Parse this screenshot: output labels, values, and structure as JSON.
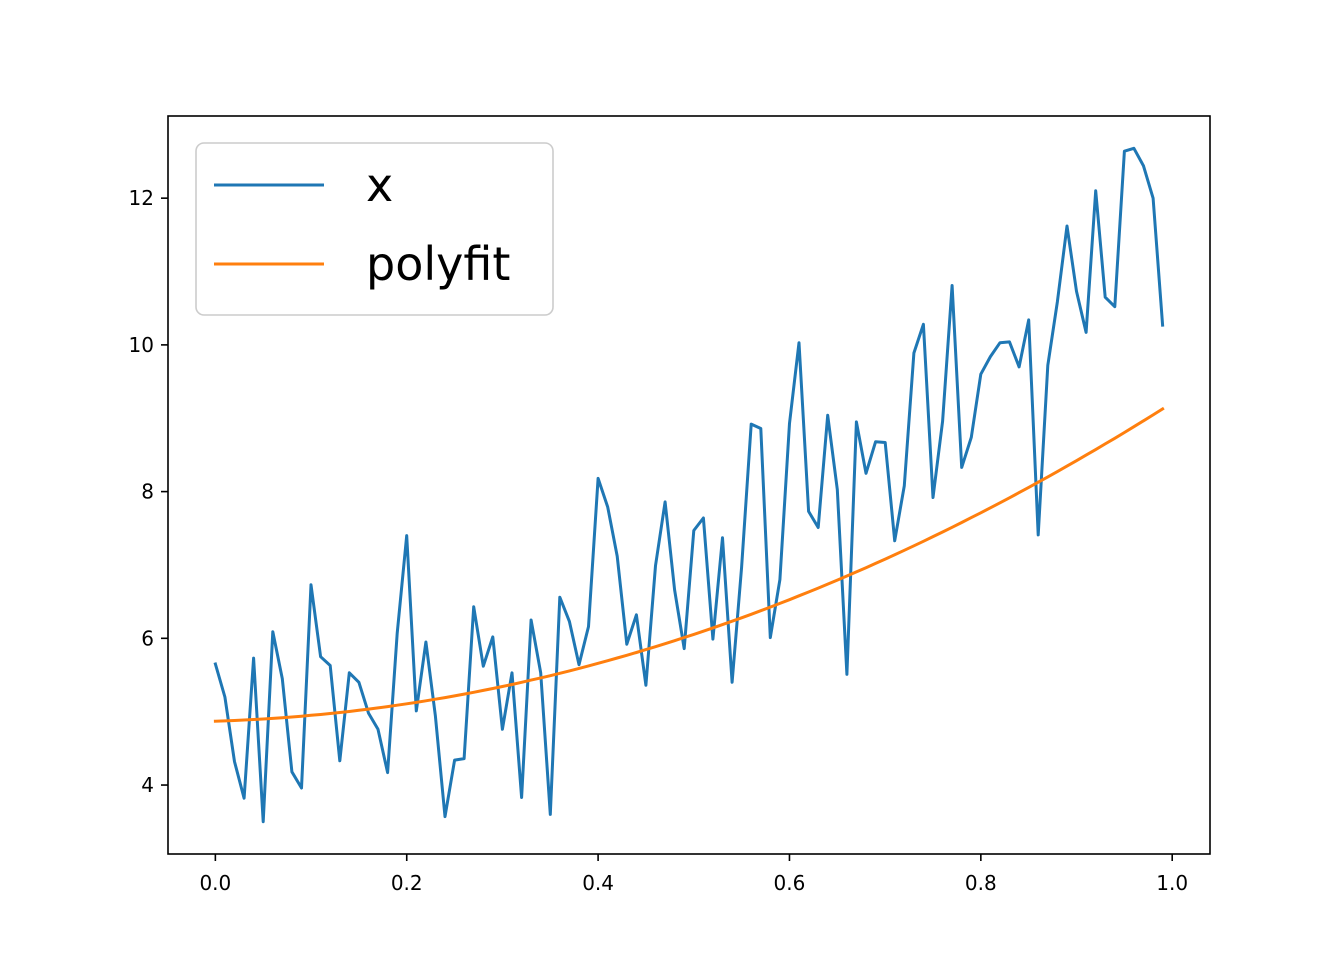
{
  "chart_data": {
    "type": "line",
    "title": "",
    "xlabel": "",
    "ylabel": "",
    "xlim": [
      -0.0495,
      1.0395
    ],
    "ylim": [
      3.06,
      13.12
    ],
    "xticks": [
      0.0,
      0.2,
      0.4,
      0.6,
      0.8,
      1.0
    ],
    "xtick_labels": [
      "0.0",
      "0.2",
      "0.4",
      "0.6",
      "0.8",
      "1.0"
    ],
    "yticks": [
      4,
      6,
      8,
      10,
      12
    ],
    "ytick_labels": [
      "4",
      "6",
      "8",
      "10",
      "12"
    ],
    "grid": false,
    "legend_position": "upper-left",
    "x": [
      0.0,
      0.01,
      0.02,
      0.03,
      0.04,
      0.05,
      0.06,
      0.07,
      0.08,
      0.09,
      0.1,
      0.11,
      0.12,
      0.13,
      0.14,
      0.15,
      0.16,
      0.17,
      0.18,
      0.19,
      0.2,
      0.21,
      0.22,
      0.23,
      0.24,
      0.25,
      0.26,
      0.27,
      0.28,
      0.29,
      0.3,
      0.31,
      0.32,
      0.33,
      0.34,
      0.35,
      0.36,
      0.37,
      0.38,
      0.39,
      0.4,
      0.41,
      0.42,
      0.43,
      0.44,
      0.45,
      0.46,
      0.47,
      0.48,
      0.49,
      0.5,
      0.51,
      0.52,
      0.53,
      0.54,
      0.55,
      0.56,
      0.57,
      0.58,
      0.59,
      0.6,
      0.61,
      0.62,
      0.63,
      0.64,
      0.65,
      0.66,
      0.67,
      0.68,
      0.69,
      0.7,
      0.71,
      0.72,
      0.73,
      0.74,
      0.75,
      0.76,
      0.77,
      0.78,
      0.79,
      0.8,
      0.81,
      0.82,
      0.83,
      0.84,
      0.85,
      0.86,
      0.87,
      0.88,
      0.89,
      0.9,
      0.91,
      0.92,
      0.93,
      0.94,
      0.95,
      0.96,
      0.97,
      0.98,
      0.99
    ],
    "series": [
      {
        "name": "x",
        "color": "#1f77b4",
        "values": [
          5.65,
          5.2,
          4.32,
          3.82,
          5.73,
          3.5,
          6.09,
          5.45,
          4.18,
          3.96,
          6.73,
          5.75,
          5.63,
          4.33,
          5.53,
          5.4,
          4.98,
          4.76,
          4.17,
          6.07,
          7.4,
          5.01,
          5.95,
          4.94,
          3.57,
          4.34,
          4.36,
          6.43,
          5.62,
          6.02,
          4.76,
          5.53,
          3.83,
          6.25,
          5.53,
          3.6,
          6.56,
          6.23,
          5.64,
          6.16,
          8.18,
          7.79,
          7.12,
          5.92,
          6.32,
          5.36,
          6.99,
          7.86,
          6.66,
          5.86,
          7.47,
          7.64,
          5.99,
          7.37,
          5.4,
          6.97,
          8.92,
          8.86,
          6.01,
          6.8,
          8.93,
          10.03,
          7.73,
          7.51,
          9.04,
          8.03,
          5.51,
          8.95,
          8.25,
          8.68,
          8.67,
          7.33,
          8.08,
          9.89,
          10.28,
          7.92,
          8.96,
          10.81,
          8.33,
          8.74,
          9.6,
          9.84,
          10.03,
          10.04,
          9.7,
          10.34,
          7.41,
          9.72,
          10.59,
          11.62,
          10.73,
          10.17,
          12.1,
          10.65,
          10.52,
          12.64,
          12.68,
          12.44,
          12.0,
          10.27
        ]
      },
      {
        "name": "polyfit",
        "color": "#ff7f0e",
        "values": [
          4.87,
          4.875,
          4.88,
          4.886,
          4.893,
          4.9,
          4.909,
          4.918,
          4.927,
          4.938,
          4.95,
          4.962,
          4.975,
          4.989,
          5.003,
          5.019,
          5.035,
          5.052,
          5.069,
          5.088,
          5.107,
          5.127,
          5.148,
          5.17,
          5.192,
          5.215,
          5.239,
          5.264,
          5.29,
          5.316,
          5.343,
          5.371,
          5.4,
          5.43,
          5.46,
          5.491,
          5.523,
          5.556,
          5.59,
          5.624,
          5.659,
          5.695,
          5.732,
          5.769,
          5.807,
          5.846,
          5.886,
          5.927,
          5.968,
          6.011,
          6.054,
          6.097,
          6.142,
          6.187,
          6.233,
          6.28,
          6.328,
          6.377,
          6.426,
          6.476,
          6.527,
          6.579,
          6.631,
          6.685,
          6.739,
          6.794,
          6.849,
          6.906,
          6.963,
          7.021,
          7.08,
          7.139,
          7.2,
          7.261,
          7.323,
          7.386,
          7.449,
          7.514,
          7.579,
          7.645,
          7.711,
          7.779,
          7.847,
          7.916,
          7.986,
          8.057,
          8.128,
          8.2,
          8.273,
          8.347,
          8.421,
          8.497,
          8.573,
          8.65,
          8.727,
          8.806,
          8.885,
          8.965,
          9.046,
          9.127
        ]
      }
    ]
  }
}
